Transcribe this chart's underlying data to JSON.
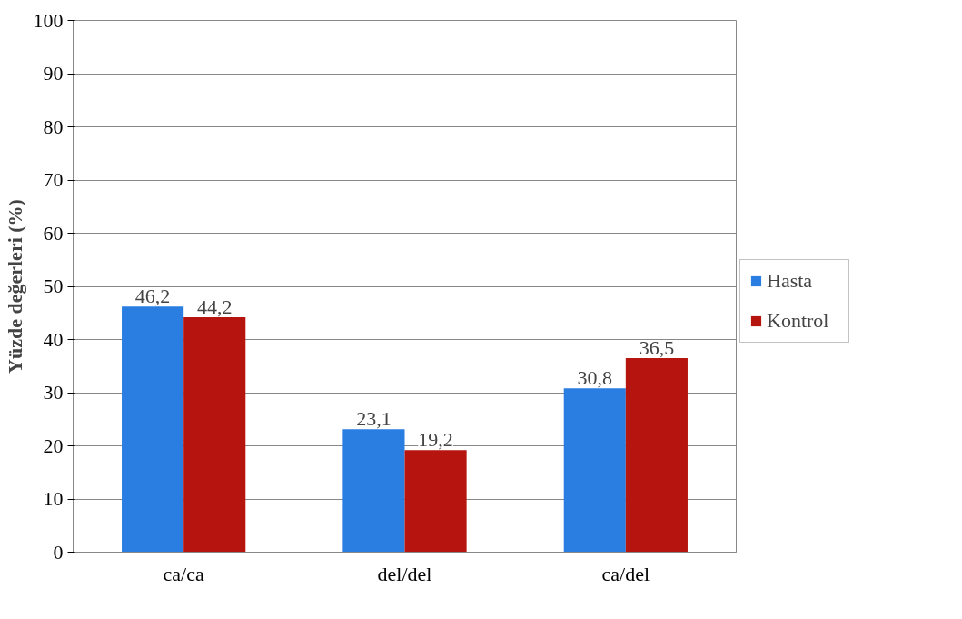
{
  "chart_data": {
    "type": "bar",
    "ylabel": "Yüzde değerleri (%)",
    "categories": [
      "ca/ca",
      "del/del",
      "ca/del"
    ],
    "series": [
      {
        "name": "Hasta",
        "color": "#2a7de1",
        "values": [
          46.2,
          23.1,
          30.8
        ],
        "value_labels": [
          "46,2",
          "23,1",
          "30,8"
        ]
      },
      {
        "name": "Kontrol",
        "color": "#b5140f",
        "values": [
          44.2,
          19.2,
          36.5
        ],
        "value_labels": [
          "44,2",
          "19,2",
          "36,5"
        ]
      }
    ],
    "ylim": [
      0,
      100
    ],
    "yticks": [
      0,
      10,
      20,
      30,
      40,
      50,
      60,
      70,
      80,
      90,
      100
    ],
    "grid": "y",
    "legend": "right"
  }
}
